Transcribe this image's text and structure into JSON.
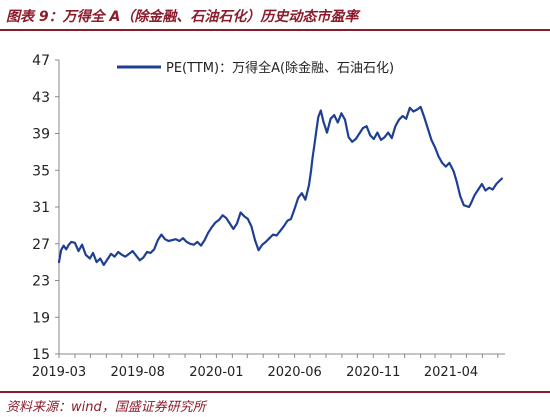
{
  "figure_title": "图表 9：万得全 A（除金融、石油石化）历史动态市盈率",
  "source_note": "资料来源：wind，国盛证券研究所",
  "colors": {
    "accent": "#8c1c2c",
    "series": "#1f3f94"
  },
  "chart_data": {
    "type": "line",
    "title": "",
    "xlabel": "",
    "ylabel": "",
    "y_ticks": [
      15,
      19,
      23,
      27,
      31,
      35,
      39,
      43,
      47
    ],
    "ylim": [
      15,
      47
    ],
    "x_tick_labels": [
      "2019-03",
      "2019-08",
      "2020-01",
      "2020-06",
      "2020-11",
      "2021-04"
    ],
    "xlim": [
      "2019-03-01",
      "2021-07-15"
    ],
    "grid": false,
    "legend_position": "top-center",
    "series": [
      {
        "name": "PE(TTM)：万得全A(除金融、石油石化)",
        "x": [
          "2019-03-01",
          "2019-03-05",
          "2019-03-10",
          "2019-03-15",
          "2019-03-20",
          "2019-03-25",
          "2019-04-01",
          "2019-04-08",
          "2019-04-15",
          "2019-04-22",
          "2019-04-30",
          "2019-05-06",
          "2019-05-13",
          "2019-05-20",
          "2019-05-27",
          "2019-06-03",
          "2019-06-10",
          "2019-06-17",
          "2019-06-24",
          "2019-07-01",
          "2019-07-08",
          "2019-07-15",
          "2019-07-22",
          "2019-07-29",
          "2019-08-05",
          "2019-08-12",
          "2019-08-19",
          "2019-08-26",
          "2019-09-02",
          "2019-09-09",
          "2019-09-16",
          "2019-09-23",
          "2019-09-30",
          "2019-10-14",
          "2019-10-21",
          "2019-10-28",
          "2019-11-04",
          "2019-11-11",
          "2019-11-18",
          "2019-11-25",
          "2019-12-02",
          "2019-12-09",
          "2019-12-16",
          "2019-12-23",
          "2019-12-30",
          "2020-01-06",
          "2020-01-13",
          "2020-01-20",
          "2020-02-03",
          "2020-02-10",
          "2020-02-17",
          "2020-02-24",
          "2020-03-02",
          "2020-03-09",
          "2020-03-16",
          "2020-03-23",
          "2020-03-30",
          "2020-04-06",
          "2020-04-13",
          "2020-04-20",
          "2020-04-27",
          "2020-05-04",
          "2020-05-11",
          "2020-05-18",
          "2020-05-25",
          "2020-06-01",
          "2020-06-08",
          "2020-06-15",
          "2020-06-22",
          "2020-06-29",
          "2020-07-03",
          "2020-07-06",
          "2020-07-09",
          "2020-07-13",
          "2020-07-17",
          "2020-07-22",
          "2020-07-27",
          "2020-08-03",
          "2020-08-10",
          "2020-08-17",
          "2020-08-24",
          "2020-08-31",
          "2020-09-07",
          "2020-09-14",
          "2020-09-21",
          "2020-09-28",
          "2020-10-12",
          "2020-10-19",
          "2020-10-26",
          "2020-11-02",
          "2020-11-09",
          "2020-11-16",
          "2020-11-23",
          "2020-11-30",
          "2020-12-07",
          "2020-12-14",
          "2020-12-21",
          "2020-12-28",
          "2021-01-04",
          "2021-01-11",
          "2021-01-18",
          "2021-01-25",
          "2021-02-01",
          "2021-02-08",
          "2021-02-18",
          "2021-02-22",
          "2021-03-01",
          "2021-03-08",
          "2021-03-15",
          "2021-03-22",
          "2021-03-29",
          "2021-04-06",
          "2021-04-12",
          "2021-04-19",
          "2021-04-26",
          "2021-05-06",
          "2021-05-10",
          "2021-05-17",
          "2021-05-24",
          "2021-05-31",
          "2021-06-07",
          "2021-06-14",
          "2021-06-21",
          "2021-06-28",
          "2021-07-05",
          "2021-07-09"
        ],
        "y": [
          25.0,
          26.3,
          26.8,
          26.4,
          26.9,
          27.2,
          27.1,
          26.2,
          26.9,
          25.8,
          25.4,
          26.0,
          25.0,
          25.4,
          24.7,
          25.3,
          25.9,
          25.6,
          26.1,
          25.8,
          25.6,
          25.9,
          26.2,
          25.7,
          25.2,
          25.5,
          26.1,
          26.0,
          26.4,
          27.4,
          28.0,
          27.5,
          27.3,
          27.5,
          27.3,
          27.6,
          27.2,
          27.0,
          26.9,
          27.2,
          26.8,
          27.4,
          28.2,
          28.8,
          29.3,
          29.6,
          30.1,
          29.8,
          28.6,
          29.2,
          30.4,
          30.0,
          29.7,
          28.9,
          27.4,
          26.3,
          26.9,
          27.2,
          27.6,
          28.0,
          27.9,
          28.4,
          28.9,
          29.5,
          29.7,
          30.8,
          32.0,
          32.5,
          31.8,
          33.4,
          35.0,
          36.4,
          37.6,
          39.2,
          40.8,
          41.5,
          40.3,
          39.1,
          40.6,
          41.0,
          40.2,
          41.2,
          40.5,
          38.6,
          38.1,
          38.4,
          39.6,
          39.8,
          38.8,
          38.4,
          39.1,
          38.3,
          38.6,
          39.1,
          38.5,
          39.8,
          40.5,
          40.9,
          40.6,
          41.8,
          41.4,
          41.6,
          41.9,
          40.8,
          39.0,
          38.3,
          37.5,
          36.5,
          35.8,
          35.4,
          35.8,
          34.9,
          33.8,
          32.2,
          31.2,
          31.0,
          31.4,
          32.3,
          32.9,
          33.5,
          32.8,
          33.1,
          32.9,
          33.5,
          33.9,
          34.1
        ]
      }
    ]
  }
}
